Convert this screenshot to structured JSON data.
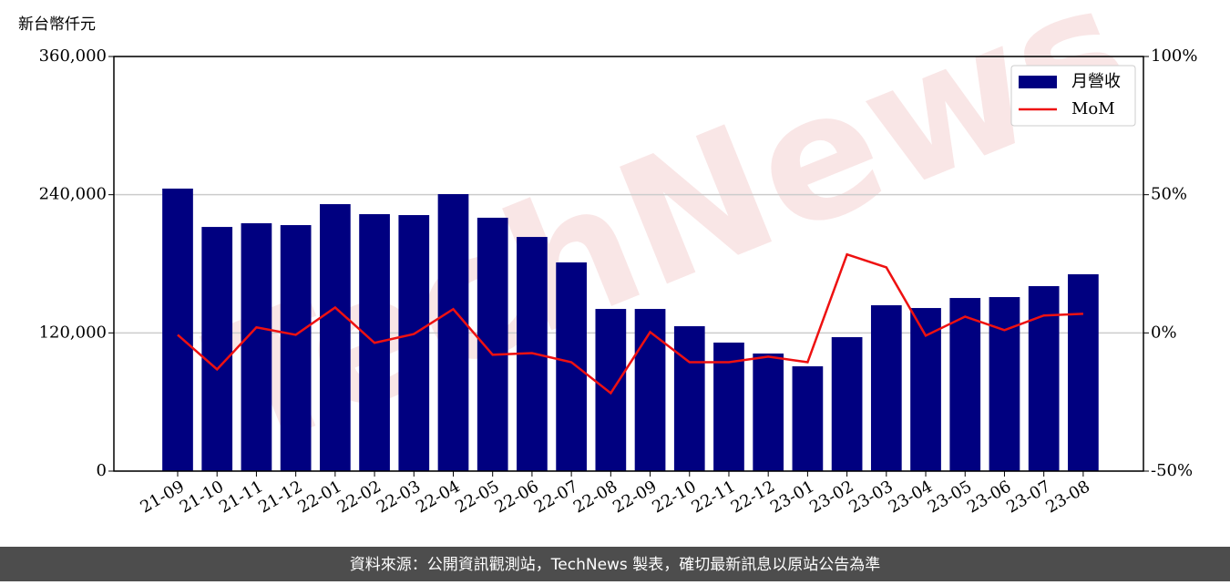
{
  "chart_data": {
    "type": "bar_line",
    "y_label": "新台幣仟元",
    "watermark": "TechNews",
    "footer": "資料來源：公開資訊觀測站，TechNews 製表，確切最新訊息以原站公告為準",
    "categories": [
      "21-09",
      "21-10",
      "21-11",
      "21-12",
      "22-01",
      "22-02",
      "22-03",
      "22-04",
      "22-05",
      "22-06",
      "22-07",
      "22-08",
      "22-09",
      "22-10",
      "22-11",
      "22-12",
      "23-01",
      "23-02",
      "23-03",
      "23-04",
      "23-05",
      "23-06",
      "23-07",
      "23-08"
    ],
    "series": [
      {
        "name": "月營收",
        "color": "#000080",
        "type": "bar",
        "values": [
          245300,
          212000,
          215200,
          213600,
          231800,
          223100,
          222300,
          240500,
          220000,
          203300,
          181200,
          140800,
          140800,
          125800,
          111600,
          102100,
          91000,
          116300,
          144000,
          141600,
          150300,
          151100,
          160600,
          170900
        ]
      },
      {
        "name": "MoM",
        "color": "#ee1111",
        "type": "line",
        "axis": "y2",
        "values": [
          -0.7,
          -13.2,
          2.0,
          -0.7,
          9.2,
          -3.6,
          -0.4,
          8.6,
          -7.9,
          -7.3,
          -10.6,
          -21.8,
          0.3,
          -10.6,
          -10.6,
          -8.6,
          -10.6,
          28.4,
          23.7,
          -1.0,
          5.9,
          1.0,
          6.3,
          6.9
        ]
      }
    ],
    "ylim": [
      0,
      360000
    ],
    "yticks": [
      0,
      {
        "value": 120000,
        "label": "120,000"
      },
      {
        "value": 240000,
        "label": "240,000"
      },
      {
        "value": 360000,
        "label": "360,000"
      }
    ],
    "y2lim": [
      -50,
      100
    ],
    "y2ticks": [
      {
        "value": -50,
        "label": "-50%"
      },
      {
        "value": 0,
        "label": "0%"
      },
      {
        "value": 50,
        "label": "50%"
      },
      {
        "value": 100,
        "label": "100%"
      }
    ],
    "grid": true,
    "legend": "upper right"
  }
}
